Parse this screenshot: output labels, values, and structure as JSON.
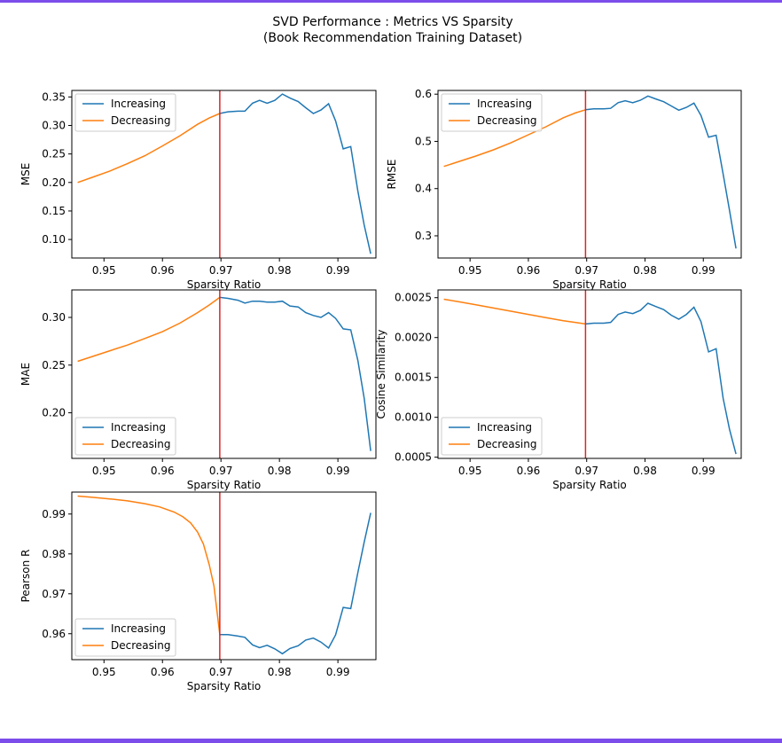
{
  "colors": {
    "frame": "#7c4dea",
    "increasing": "#1f77b4",
    "decreasing": "#ff7f0e",
    "threshold_line": "#d62728"
  },
  "figure": {
    "title_line1": "SVD Performance : Metrics VS Sparsity",
    "title_line2": "(Book Recommendation Training Dataset)"
  },
  "chart_data": [
    {
      "type": "line",
      "title": "",
      "xlabel": "Sparsity Ratio",
      "ylabel": "MSE",
      "xlim": [
        0.9445,
        0.9965
      ],
      "ylim": [
        0.0675,
        0.3614
      ],
      "xticks": [
        0.95,
        0.96,
        0.97,
        0.98,
        0.99
      ],
      "yticks": [
        0.1,
        0.15,
        0.2,
        0.25,
        0.3,
        0.35
      ],
      "ytick_labels": [
        "0.10",
        "0.15",
        "0.20",
        "0.25",
        "0.30",
        "0.35"
      ],
      "vline_x": 0.9698,
      "legend": "upper left",
      "series": [
        {
          "name": "Increasing",
          "x": [
            0.9698,
            0.9712,
            0.9729,
            0.9741,
            0.9754,
            0.9766,
            0.9779,
            0.9792,
            0.9805,
            0.9818,
            0.9832,
            0.9845,
            0.9858,
            0.9871,
            0.9884,
            0.9896,
            0.9909,
            0.9922,
            0.9934,
            0.9945,
            0.9956
          ],
          "y": [
            0.321,
            0.324,
            0.325,
            0.325,
            0.339,
            0.344,
            0.339,
            0.344,
            0.355,
            0.348,
            0.342,
            0.331,
            0.321,
            0.327,
            0.338,
            0.308,
            0.259,
            0.263,
            0.185,
            0.125,
            0.075
          ]
        },
        {
          "name": "Decreasing",
          "x": [
            0.9455,
            0.948,
            0.951,
            0.954,
            0.957,
            0.96,
            0.963,
            0.966,
            0.968,
            0.9698
          ],
          "y": [
            0.2,
            0.209,
            0.22,
            0.233,
            0.247,
            0.264,
            0.282,
            0.302,
            0.313,
            0.321
          ]
        }
      ]
    },
    {
      "type": "line",
      "title": "",
      "xlabel": "Sparsity Ratio",
      "ylabel": "RMSE",
      "xlim": [
        0.9445,
        0.9965
      ],
      "ylim": [
        0.253,
        0.6079
      ],
      "xticks": [
        0.95,
        0.96,
        0.97,
        0.98,
        0.99
      ],
      "yticks": [
        0.3,
        0.4,
        0.5,
        0.6
      ],
      "ytick_labels": [
        "0.3",
        "0.4",
        "0.5",
        "0.6"
      ],
      "vline_x": 0.9698,
      "legend": "upper left",
      "series": [
        {
          "name": "Increasing",
          "x": [
            0.9698,
            0.9712,
            0.9729,
            0.9741,
            0.9754,
            0.9766,
            0.9779,
            0.9792,
            0.9805,
            0.9818,
            0.9832,
            0.9845,
            0.9858,
            0.9871,
            0.9884,
            0.9896,
            0.9909,
            0.9922,
            0.9934,
            0.9945,
            0.9956
          ],
          "y": [
            0.567,
            0.569,
            0.569,
            0.57,
            0.582,
            0.586,
            0.582,
            0.587,
            0.596,
            0.59,
            0.584,
            0.575,
            0.566,
            0.572,
            0.581,
            0.555,
            0.509,
            0.513,
            0.431,
            0.354,
            0.273
          ]
        },
        {
          "name": "Decreasing",
          "x": [
            0.9455,
            0.948,
            0.951,
            0.954,
            0.957,
            0.96,
            0.963,
            0.966,
            0.968,
            0.9698
          ],
          "y": [
            0.447,
            0.457,
            0.469,
            0.482,
            0.497,
            0.514,
            0.531,
            0.55,
            0.56,
            0.567
          ]
        }
      ]
    },
    {
      "type": "line",
      "title": "",
      "xlabel": "Sparsity Ratio",
      "ylabel": "MAE",
      "xlim": [
        0.9445,
        0.9965
      ],
      "ylim": [
        0.1522,
        0.3288
      ],
      "xticks": [
        0.95,
        0.96,
        0.97,
        0.98,
        0.99
      ],
      "yticks": [
        0.2,
        0.25,
        0.3
      ],
      "ytick_labels": [
        "0.20",
        "0.25",
        "0.30"
      ],
      "vline_x": 0.9698,
      "legend": "lower left",
      "series": [
        {
          "name": "Increasing",
          "x": [
            0.9698,
            0.9712,
            0.9729,
            0.9741,
            0.9754,
            0.9766,
            0.9779,
            0.9792,
            0.9805,
            0.9818,
            0.9832,
            0.9845,
            0.9858,
            0.9871,
            0.9884,
            0.9896,
            0.9909,
            0.9922,
            0.9934,
            0.9945,
            0.9956
          ],
          "y": [
            0.321,
            0.32,
            0.318,
            0.315,
            0.317,
            0.317,
            0.316,
            0.316,
            0.317,
            0.312,
            0.311,
            0.305,
            0.302,
            0.3,
            0.305,
            0.299,
            0.288,
            0.287,
            0.255,
            0.215,
            0.16
          ]
        },
        {
          "name": "Decreasing",
          "x": [
            0.9455,
            0.948,
            0.951,
            0.954,
            0.957,
            0.96,
            0.963,
            0.966,
            0.968,
            0.9698
          ],
          "y": [
            0.254,
            0.259,
            0.265,
            0.271,
            0.278,
            0.285,
            0.294,
            0.305,
            0.313,
            0.321
          ]
        }
      ]
    },
    {
      "type": "line",
      "title": "",
      "xlabel": "Sparsity Ratio",
      "ylabel": "Cosine Similarity",
      "xlim": [
        0.9445,
        0.9965
      ],
      "ylim": [
        0.000485,
        0.002597
      ],
      "xticks": [
        0.95,
        0.96,
        0.97,
        0.98,
        0.99
      ],
      "yticks": [
        0.0005,
        0.001,
        0.0015,
        0.002,
        0.0025
      ],
      "ytick_labels": [
        "0.0005",
        "0.0010",
        "0.0015",
        "0.0020",
        "0.0025"
      ],
      "vline_x": 0.9698,
      "legend": "lower left",
      "series": [
        {
          "name": "Increasing",
          "x": [
            0.9698,
            0.9712,
            0.9729,
            0.9741,
            0.9754,
            0.9766,
            0.9779,
            0.9792,
            0.9805,
            0.9818,
            0.9832,
            0.9845,
            0.9858,
            0.9871,
            0.9884,
            0.9896,
            0.9909,
            0.9922,
            0.9934,
            0.9945,
            0.9956
          ],
          "y": [
            0.00217,
            0.00218,
            0.00218,
            0.00219,
            0.00229,
            0.00232,
            0.0023,
            0.00234,
            0.00243,
            0.00239,
            0.00235,
            0.00228,
            0.00223,
            0.00229,
            0.00238,
            0.0022,
            0.00182,
            0.00186,
            0.00124,
            0.00085,
            0.00054
          ]
        },
        {
          "name": "Decreasing",
          "x": [
            0.9455,
            0.948,
            0.951,
            0.954,
            0.957,
            0.96,
            0.963,
            0.966,
            0.968,
            0.9698
          ],
          "y": [
            0.00248,
            0.00245,
            0.00241,
            0.00237,
            0.00233,
            0.00229,
            0.00225,
            0.00221,
            0.00219,
            0.00217
          ]
        }
      ]
    },
    {
      "type": "line",
      "title": "",
      "xlabel": "Sparsity Ratio",
      "ylabel": "Pearson R",
      "xlim": [
        0.9445,
        0.9965
      ],
      "ylim": [
        0.9535,
        0.9955
      ],
      "xticks": [
        0.95,
        0.96,
        0.97,
        0.98,
        0.99
      ],
      "yticks": [
        0.96,
        0.97,
        0.98,
        0.99
      ],
      "ytick_labels": [
        "0.96",
        "0.97",
        "0.98",
        "0.99"
      ],
      "vline_x": 0.9698,
      "legend": "lower left",
      "series": [
        {
          "name": "Increasing",
          "x": [
            0.9698,
            0.9712,
            0.9729,
            0.9741,
            0.9754,
            0.9766,
            0.9779,
            0.9792,
            0.9805,
            0.9818,
            0.9832,
            0.9845,
            0.9858,
            0.9871,
            0.9884,
            0.9896,
            0.9909,
            0.9922,
            0.9934,
            0.9945,
            0.9956
          ],
          "y": [
            0.9598,
            0.9598,
            0.9594,
            0.9591,
            0.9572,
            0.9565,
            0.9571,
            0.9562,
            0.955,
            0.9563,
            0.957,
            0.9584,
            0.9589,
            0.9579,
            0.9564,
            0.9597,
            0.9666,
            0.9663,
            0.9753,
            0.983,
            0.9903
          ]
        },
        {
          "name": "Decreasing",
          "x": [
            0.9455,
            0.948,
            0.951,
            0.954,
            0.957,
            0.9595,
            0.962,
            0.9635,
            0.9648,
            0.966,
            0.967,
            0.968,
            0.9688,
            0.9698
          ],
          "y": [
            0.9945,
            0.9942,
            0.9938,
            0.9933,
            0.9926,
            0.9918,
            0.9905,
            0.9893,
            0.9878,
            0.9855,
            0.9825,
            0.9773,
            0.972,
            0.9598
          ]
        }
      ]
    }
  ]
}
